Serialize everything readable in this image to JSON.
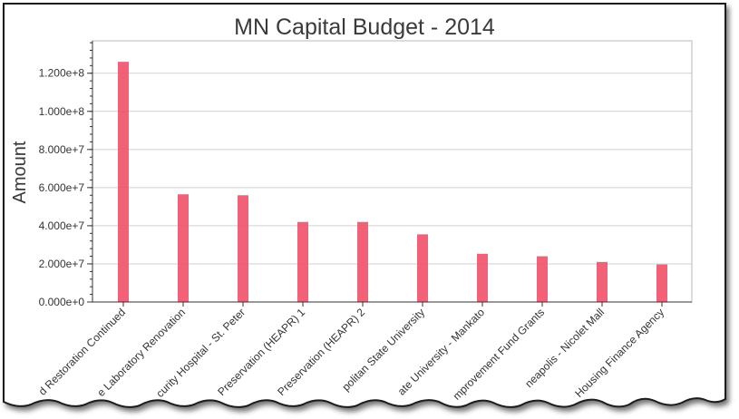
{
  "chart_data": {
    "type": "bar",
    "title": "MN Capital Budget - 2014",
    "xlabel": "",
    "ylabel": "Amount",
    "categories": [
      "d Restoration Continued",
      "e Laboratory Renovation",
      "curity Hospital - St. Peter",
      "Preservation (HEAPR) 1",
      "Preservation (HEAPR) 2",
      "politan State University",
      "ate University - Mankato",
      "mprovement Fund Grants",
      "neapolis - Nicolet Mall",
      "Housing Finance Agency"
    ],
    "values": [
      126000000,
      56500000,
      56000000,
      42000000,
      42000000,
      35500000,
      25300000,
      24000000,
      21000000,
      19700000
    ],
    "ylim": [
      0,
      137000000
    ],
    "yticks": [
      0,
      20000000,
      40000000,
      60000000,
      80000000,
      100000000,
      120000000
    ],
    "ytick_labels": [
      "0.000e+0",
      "2.000e+7",
      "4.000e+7",
      "6.000e+7",
      "8.000e+7",
      "1.000e+8",
      "1.200e+8"
    ],
    "grid": true,
    "legend": "none",
    "bar_color": "#f2506a"
  }
}
